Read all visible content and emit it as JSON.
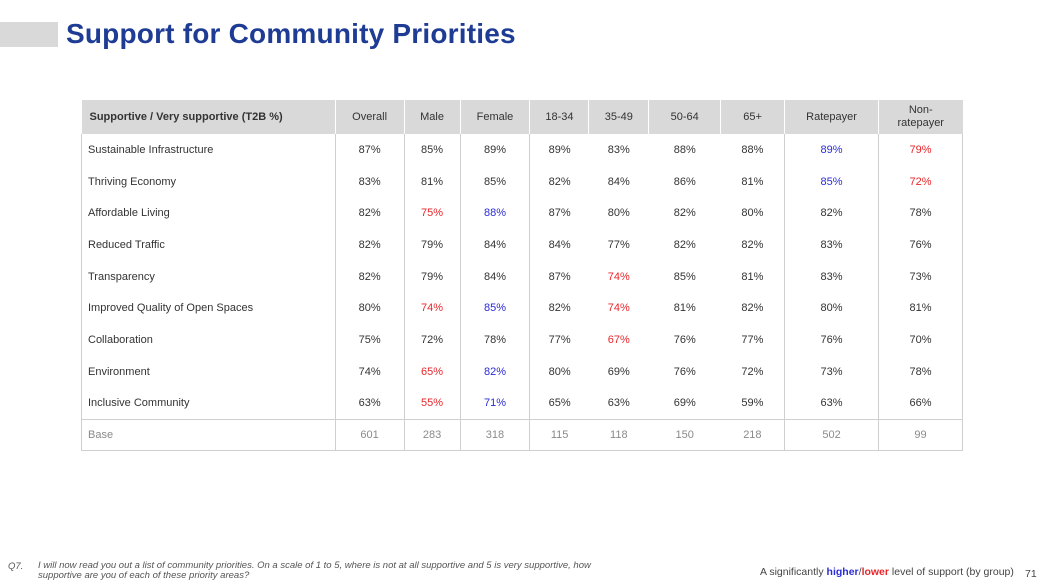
{
  "title": "Support for Community Priorities",
  "header": {
    "stub": "Supportive / Very supportive (T2B %)",
    "columns": [
      "Overall",
      "Male",
      "Female",
      "18-34",
      "35-49",
      "50-64",
      "65+",
      "Ratepayer",
      "Non-ratepayer"
    ]
  },
  "rows": [
    {
      "label": "Sustainable Infrastructure",
      "values": [
        "87%",
        "85%",
        "89%",
        "89%",
        "83%",
        "88%",
        "88%",
        "89%",
        "79%"
      ],
      "flags": [
        "",
        "",
        "",
        "",
        "",
        "",
        "",
        "higher",
        "lower"
      ]
    },
    {
      "label": "Thriving Economy",
      "values": [
        "83%",
        "81%",
        "85%",
        "82%",
        "84%",
        "86%",
        "81%",
        "85%",
        "72%"
      ],
      "flags": [
        "",
        "",
        "",
        "",
        "",
        "",
        "",
        "higher",
        "lower"
      ]
    },
    {
      "label": "Affordable Living",
      "values": [
        "82%",
        "75%",
        "88%",
        "87%",
        "80%",
        "82%",
        "80%",
        "82%",
        "78%"
      ],
      "flags": [
        "",
        "lower",
        "higher",
        "",
        "",
        "",
        "",
        "",
        ""
      ]
    },
    {
      "label": "Reduced Traffic",
      "values": [
        "82%",
        "79%",
        "84%",
        "84%",
        "77%",
        "82%",
        "82%",
        "83%",
        "76%"
      ],
      "flags": [
        "",
        "",
        "",
        "",
        "",
        "",
        "",
        "",
        ""
      ]
    },
    {
      "label": "Transparency",
      "values": [
        "82%",
        "79%",
        "84%",
        "87%",
        "74%",
        "85%",
        "81%",
        "83%",
        "73%"
      ],
      "flags": [
        "",
        "",
        "",
        "",
        "lower",
        "",
        "",
        "",
        ""
      ]
    },
    {
      "label": "Improved Quality of Open Spaces",
      "values": [
        "80%",
        "74%",
        "85%",
        "82%",
        "74%",
        "81%",
        "82%",
        "80%",
        "81%"
      ],
      "flags": [
        "",
        "lower",
        "higher",
        "",
        "lower",
        "",
        "",
        "",
        ""
      ]
    },
    {
      "label": "Collaboration",
      "values": [
        "75%",
        "72%",
        "78%",
        "77%",
        "67%",
        "76%",
        "77%",
        "76%",
        "70%"
      ],
      "flags": [
        "",
        "",
        "",
        "",
        "lower",
        "",
        "",
        "",
        ""
      ]
    },
    {
      "label": "Environment",
      "values": [
        "74%",
        "65%",
        "82%",
        "80%",
        "69%",
        "76%",
        "72%",
        "73%",
        "78%"
      ],
      "flags": [
        "",
        "lower",
        "higher",
        "",
        "",
        "",
        "",
        "",
        ""
      ]
    },
    {
      "label": "Inclusive Community",
      "values": [
        "63%",
        "55%",
        "71%",
        "65%",
        "63%",
        "69%",
        "59%",
        "63%",
        "66%"
      ],
      "flags": [
        "",
        "lower",
        "higher",
        "",
        "",
        "",
        "",
        "",
        ""
      ]
    }
  ],
  "base": {
    "label": "Base",
    "values": [
      "601",
      "283",
      "318",
      "115",
      "118",
      "150",
      "218",
      "502",
      "99"
    ]
  },
  "footer": {
    "question_no": "Q7.",
    "question": "I will now read you out a list of community priorities. On a scale of 1 to 5, where is not at all supportive and 5 is very supportive, how supportive are you of each of these priority areas?",
    "legend_prefix": "A significantly ",
    "legend_higher": "higher",
    "legend_sep": "/",
    "legend_lower": "lower",
    "legend_suffix": " level of support (by group)",
    "page_number": "71"
  },
  "colors": {
    "title": "#1f3c95",
    "higher": "#2b2bd9",
    "lower": "#e8262b",
    "header_bg": "#d9d9d9"
  }
}
